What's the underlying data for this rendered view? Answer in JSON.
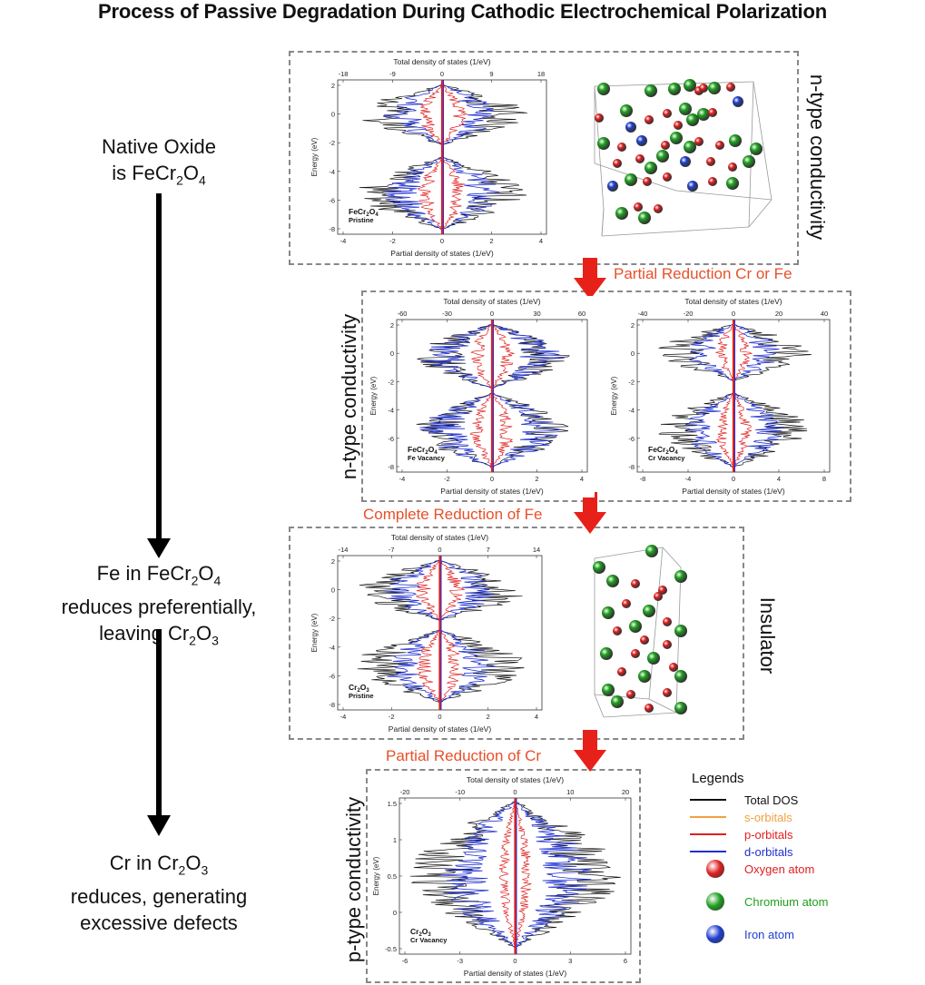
{
  "title": "Process of Passive Degradation During Cathodic Electrochemical Polarization",
  "stages": {
    "s1": {
      "l1": "Native Oxide",
      "l2": "is FeCr",
      "sub1": "2",
      "mid": "O",
      "sub2": "4"
    },
    "s2": {
      "l1": "Fe in FeCr",
      "sub1": "2",
      "mid1": "O",
      "sub2": "4",
      "l2": "reduces preferentially,",
      "l3a": "leaving Cr",
      "sub3": "2",
      "mid3": "O",
      "sub4": "3"
    },
    "s3": {
      "l1a": "Cr in Cr",
      "sub1": "2",
      "mid": "O",
      "sub2": "3",
      "l2": "reduces, generating",
      "l3": "excessive defects"
    }
  },
  "steps": {
    "step1": "Partial Reduction Cr or Fe",
    "step2": "Complete Reduction of Fe",
    "step3": "Partial Reduction of Cr"
  },
  "conductivity": {
    "p1": "n-type conductivity",
    "p2": "n-type conductivity",
    "p3": "Insulator",
    "p4": "p-type conductivity"
  },
  "axes": {
    "top_label": "Total density of states (1/eV)",
    "bottom_label": "Partial density of states (1/eV)",
    "y_label": "Energy (eV)"
  },
  "plots": [
    {
      "id": "fecr2o4-pristine",
      "name1": "FeCr",
      "sub1": "2",
      "name2": "O",
      "sub2": "4",
      "tag": "Pristine",
      "top_ticks": [
        "-18",
        "-9",
        "0",
        "9",
        "18"
      ],
      "bottom_ticks": [
        "-4",
        "-2",
        "0",
        "2",
        "4"
      ],
      "y_ticks": [
        "2",
        "0",
        "-2",
        "-4",
        "-6",
        "-8"
      ]
    },
    {
      "id": "fecr2o4-fe-vacancy",
      "name1": "FeCr",
      "sub1": "2",
      "name2": "O",
      "sub2": "4",
      "tag": "Fe Vacancy",
      "top_ticks": [
        "-60",
        "-30",
        "0",
        "30",
        "60"
      ],
      "bottom_ticks": [
        "-4",
        "-2",
        "0",
        "2",
        "4"
      ],
      "y_ticks": [
        "2",
        "0",
        "-2",
        "-4",
        "-6",
        "-8"
      ]
    },
    {
      "id": "fecr2o4-cr-vacancy",
      "name1": "FeCr",
      "sub1": "2",
      "name2": "O",
      "sub2": "4",
      "tag": "Cr Vacancy",
      "top_ticks": [
        "-40",
        "-20",
        "0",
        "20",
        "40"
      ],
      "bottom_ticks": [
        "-8",
        "-4",
        "0",
        "4",
        "8"
      ],
      "y_ticks": [
        "2",
        "0",
        "-2",
        "-4",
        "-6",
        "-8"
      ]
    },
    {
      "id": "cr2o3-pristine",
      "name1": "Cr",
      "sub1": "2",
      "name2": "O",
      "sub2": "3",
      "tag": "Pristine",
      "top_ticks": [
        "-14",
        "-7",
        "0",
        "7",
        "14"
      ],
      "bottom_ticks": [
        "-4",
        "-2",
        "0",
        "2",
        "4"
      ],
      "y_ticks": [
        "2",
        "0",
        "-2",
        "-4",
        "-6",
        "-8"
      ]
    },
    {
      "id": "cr2o3-cr-vacancy",
      "name1": "Cr",
      "sub1": "2",
      "name2": "O",
      "sub2": "3",
      "tag": "Cr Vacancy",
      "top_ticks": [
        "-20",
        "-10",
        "0",
        "10",
        "20"
      ],
      "bottom_ticks": [
        "-6",
        "-3",
        "0",
        "3",
        "6"
      ],
      "y_ticks": [
        "1.5",
        "1",
        "0.5",
        "0",
        "-0.5"
      ]
    }
  ],
  "legend": {
    "title": "Legends",
    "items": [
      {
        "label": "Total DOS",
        "color": "#111111",
        "kind": "line"
      },
      {
        "label": "s-orbitals",
        "color": "#f0a040",
        "kind": "line"
      },
      {
        "label": "p-orbitals",
        "color": "#e02020",
        "kind": "line"
      },
      {
        "label": "d-orbitals",
        "color": "#2030d0",
        "kind": "line"
      },
      {
        "label": "Oxygen atom",
        "color": "#e02020",
        "kind": "atom"
      },
      {
        "label": "Chromium atom",
        "color": "#20a020",
        "kind": "atom"
      },
      {
        "label": "Iron atom",
        "color": "#2040d0",
        "kind": "atom"
      }
    ]
  },
  "colors": {
    "total": "#111111",
    "p": "#e02020",
    "d": "#2030d0",
    "arrow": "#e8201a",
    "step_text": "#e8502a",
    "oxygen": "#e02020",
    "chromium": "#20a020",
    "iron": "#2040d0"
  }
}
